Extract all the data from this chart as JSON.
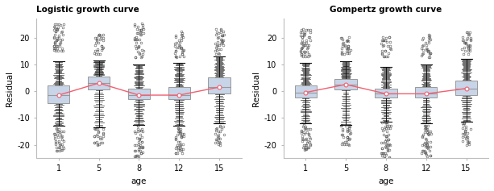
{
  "left_title": "Logistic growth curve",
  "right_title": "Gompertz growth curve",
  "xlabel": "age",
  "ylabel": "Residual",
  "ages": [
    1,
    5,
    8,
    12,
    15
  ],
  "ylim": [
    -25,
    27
  ],
  "yticks": [
    -20,
    -10,
    0,
    10,
    20
  ],
  "left": {
    "medians": [
      -1.5,
      3.0,
      -1.5,
      -1.5,
      1.5
    ],
    "q1": [
      -4.5,
      0.5,
      -3.0,
      -3.0,
      -1.0
    ],
    "q3": [
      2.0,
      5.5,
      1.0,
      1.5,
      5.0
    ],
    "whislo": [
      -13.0,
      -13.5,
      -12.5,
      -13.0,
      -12.0
    ],
    "whishi": [
      11.0,
      11.5,
      10.0,
      10.5,
      13.0
    ],
    "means": [
      -1.5,
      3.0,
      -1.5,
      -1.5,
      1.5
    ],
    "fliers_above": [
      [
        15,
        16,
        17,
        18,
        19,
        20,
        21,
        22,
        23,
        24,
        25
      ],
      [
        14,
        15,
        16,
        17,
        18,
        19,
        20,
        21
      ],
      [
        13,
        14,
        15,
        16,
        17,
        18,
        19,
        20,
        21,
        22,
        23,
        24,
        25
      ],
      [
        13,
        14,
        15,
        16,
        17,
        18,
        19,
        20,
        21,
        22
      ],
      [
        14,
        15,
        16,
        17,
        18,
        19,
        20,
        21,
        22,
        23
      ]
    ],
    "fliers_below": [
      [
        -14,
        -15,
        -16,
        -17,
        -18,
        -19,
        -20,
        -21,
        -22
      ],
      [
        -14,
        -15,
        -16,
        -17,
        -18,
        -19,
        -20
      ],
      [
        -13,
        -14,
        -15,
        -16,
        -17,
        -18,
        -19,
        -20,
        -21,
        -22,
        -23,
        -24,
        -25
      ],
      [
        -14,
        -15,
        -16,
        -17,
        -18,
        -19,
        -20,
        -21,
        -22,
        -23
      ],
      [
        -13,
        -14,
        -15,
        -16,
        -17,
        -18,
        -19,
        -20
      ]
    ],
    "line_means": [
      -1.5,
      3.0,
      -1.5,
      -1.5,
      1.5
    ]
  },
  "right": {
    "medians": [
      -0.5,
      2.5,
      -1.0,
      -1.0,
      1.0
    ],
    "q1": [
      -2.5,
      0.5,
      -2.5,
      -2.5,
      -1.5
    ],
    "q3": [
      2.0,
      4.5,
      1.0,
      1.5,
      4.0
    ],
    "whislo": [
      -12.0,
      -12.5,
      -11.5,
      -12.0,
      -11.5
    ],
    "whishi": [
      10.5,
      11.0,
      9.0,
      10.0,
      12.0
    ],
    "means": [
      -0.5,
      2.5,
      -1.0,
      -1.0,
      1.0
    ],
    "fliers_above": [
      [
        13,
        14,
        15,
        16,
        17,
        18,
        19,
        20,
        21,
        22,
        23
      ],
      [
        14,
        15,
        16,
        17,
        18,
        19,
        20
      ],
      [
        13,
        14,
        15,
        16,
        17,
        18,
        19,
        20
      ],
      [
        13,
        14,
        15,
        16,
        17,
        18,
        19,
        20,
        21
      ],
      [
        14,
        15,
        16,
        17,
        18,
        19,
        20,
        21,
        22
      ]
    ],
    "fliers_below": [
      [
        -13,
        -14,
        -15,
        -16,
        -17,
        -18,
        -19,
        -20,
        -21,
        -22
      ],
      [
        -13,
        -14,
        -15,
        -16,
        -17,
        -18,
        -19,
        -20
      ],
      [
        -12,
        -13,
        -14,
        -15,
        -16,
        -17,
        -18,
        -19,
        -20,
        -21,
        -22,
        -23,
        -24,
        -25
      ],
      [
        -13,
        -14,
        -15,
        -16,
        -17,
        -18,
        -19,
        -20,
        -21,
        -22,
        -23,
        -24
      ],
      [
        -12,
        -13,
        -14,
        -15,
        -16,
        -17,
        -18,
        -19,
        -20
      ]
    ],
    "line_means": [
      -0.5,
      2.5,
      -1.0,
      -1.0,
      1.0
    ]
  },
  "box_facecolor": "#c8d4e8",
  "box_edgecolor": "#999999",
  "median_color": "#999999",
  "whisker_color": "#111111",
  "dense_tick_color": "#111111",
  "flier_color": "#555555",
  "mean_line_color": "#f06070",
  "mean_marker_facecolor": "white",
  "mean_marker_edgecolor": "#f06070",
  "background_color": "#ffffff"
}
